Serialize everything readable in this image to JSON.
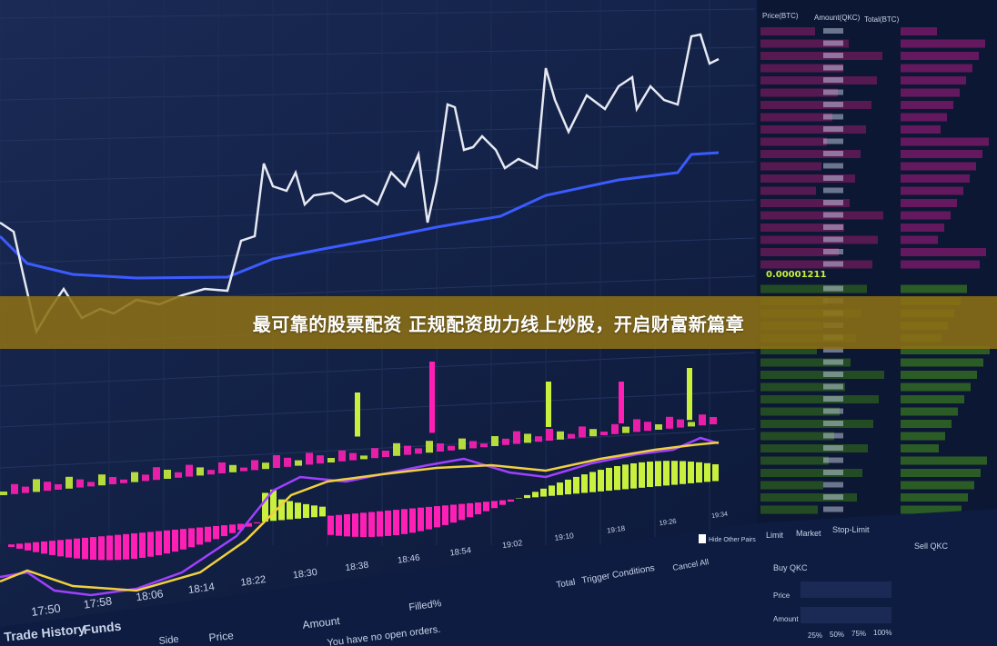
{
  "banner": {
    "title": "最可靠的股票配资 正规配资助力线上炒股，开启财富新篇章"
  },
  "chart": {
    "time_labels": [
      "17:50",
      "17:58",
      "18:06",
      "18:14",
      "18:22",
      "18:30",
      "18:38",
      "18:46",
      "18:54",
      "19:02",
      "19:10",
      "19:18",
      "19:26",
      "19:34"
    ],
    "colors": {
      "price_line": "#e6e9f2",
      "ma_line": "#3b5bff",
      "macd_pos": "#c8f03c",
      "macd_neg": "#ff1fb4",
      "dif": "#a040ff",
      "dea": "#f0d040",
      "volume": "#ff1fb4"
    }
  },
  "orders_panel": {
    "tabs": [
      "Trade History",
      "Funds"
    ],
    "columns": [
      "Side",
      "Price",
      "Amount",
      "Filled%",
      "Total",
      "Trigger Conditions"
    ],
    "cancel_all": "Cancel All",
    "hide_other_pairs": "Hide Other Pairs",
    "empty_message": "You have no open orders."
  },
  "order_book": {
    "headers": [
      "Price(BTC)",
      "Amount(QKC)",
      "Total(BTC)"
    ],
    "mid_price": "0.00001211"
  },
  "trade_panel": {
    "tabs": [
      "Limit",
      "Market",
      "Stop-Limit"
    ],
    "buy_label": "Buy QKC",
    "sell_label": "Sell QKC",
    "fields": [
      "Price",
      "Amount"
    ],
    "percents": [
      "25%",
      "50%",
      "75%",
      "100%"
    ]
  }
}
